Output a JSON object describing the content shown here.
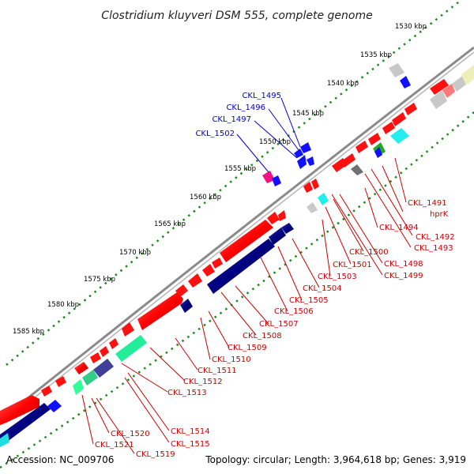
{
  "title": "Clostridium kluyveri DSM 555, complete genome",
  "accession": "Accession: NC_009706",
  "summary": "Topology: circular; Length: 3,964,618 bp; Genes: 3,919",
  "colors": {
    "blue_label": "#0000cc",
    "red_label": "#cc0000",
    "backbone": "#808080",
    "tick_dots": "#1a8a1a"
  },
  "ruler": [
    "1530 kbp",
    "1535 kbp",
    "1540 kbp",
    "1545 kbp",
    "1550 kbp",
    "1555 kbp",
    "1560 kbp",
    "1565 kbp",
    "1570 kbp",
    "1575 kbp",
    "1580 kbp",
    "1585 kbp"
  ],
  "blue_labels": [
    "CKL_1495",
    "CKL_1496",
    "CKL_1497",
    "CKL_1502"
  ],
  "red_labels": [
    "CKL_1491",
    "hprK",
    "CKL_1494",
    "CKL_1492",
    "CKL_1493",
    "CKL_1500",
    "CKL_1498",
    "CKL_1501",
    "CKL_1499",
    "CKL_1503",
    "CKL_1504",
    "CKL_1505",
    "CKL_1506",
    "CKL_1507",
    "CKL_1508",
    "CKL_1509",
    "CKL_1510",
    "CKL_1511",
    "CKL_1512",
    "CKL_1513",
    "CKL_1514",
    "CKL_1515",
    "CKL_1520",
    "CKL_1521",
    "CKL_1519"
  ]
}
